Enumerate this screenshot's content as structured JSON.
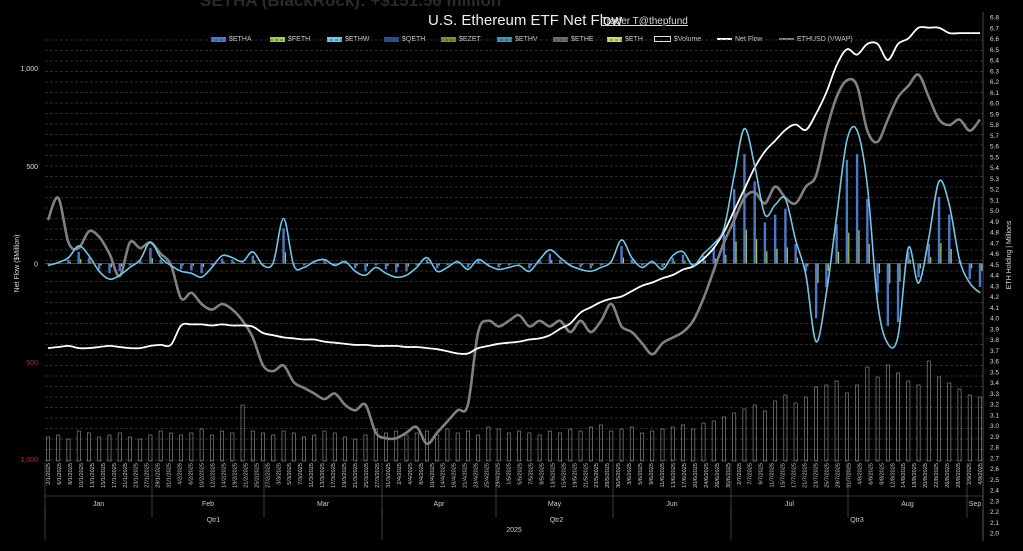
{
  "header": {
    "title": "U.S. Ethereum ETF Net Flow",
    "credit": "Trader T@thepfund",
    "background_text": "SETHA (BlackRock): +$151.56 million"
  },
  "colors": {
    "ETHA": "#4e79c9",
    "FETH": "#a7c957",
    "ETHW": "#76c5e6",
    "QETH": "#2b4f8c",
    "EZET": "#8a8a3a",
    "ETHV": "#4a8fb0",
    "ETHE": "#6b6b6b",
    "ETH": "#c8d97a",
    "Volume": "#9a9a9a",
    "NetFlow": "#ffffff",
    "VWAP": "#808080",
    "zeroDown": "#cc2222"
  },
  "chart_data": {
    "type": "bar",
    "xlabel": "",
    "ylabel": "Net Flow ($Million)",
    "y2label": "ETH Holding | Millions",
    "ylim": [
      -1000,
      1000
    ],
    "y_ticks": [
      "1,000",
      "500",
      "0",
      "500",
      "1,000"
    ],
    "y2lim": [
      2.0,
      6.8
    ],
    "y2_ticks": [
      "6.8",
      "6.7",
      "6.6",
      "6.5",
      "6.4",
      "6.3",
      "6.2",
      "6.1",
      "6.0",
      "5.9",
      "5.8",
      "5.7",
      "5.6",
      "5.5",
      "5.4",
      "5.3",
      "5.2",
      "5.1",
      "5.0",
      "4.9",
      "4.8",
      "4.7",
      "4.6",
      "4.5",
      "4.4",
      "4.3",
      "4.2",
      "4.1",
      "4.0",
      "3.9",
      "3.8",
      "3.7",
      "3.6",
      "3.5",
      "3.4",
      "3.3",
      "3.2",
      "3.1",
      "3.0",
      "2.9",
      "2.8",
      "2.7",
      "2.6",
      "2.5",
      "2.4",
      "2.3",
      "2.2",
      "2.1",
      "2.0"
    ],
    "legend": [
      "$ETHA",
      "$FETH",
      "$ETHW",
      "$QETH",
      "$EZET",
      "$ETHV",
      "$ETHE",
      "$ETH",
      "$Volume",
      "Net Flow",
      "ETHUSD (VWAP)"
    ],
    "legend_position": "top",
    "x_tick_labels": [
      "2/1/2025",
      "6/1/2025",
      "8/1/2025",
      "10/1/2025",
      "13/1/2025",
      "15/1/2025",
      "17/1/2025",
      "21/1/2025",
      "23/1/2025",
      "27/1/2025",
      "29/1/2025",
      "31/1/2025",
      "4/2/2025",
      "6/2/2025",
      "10/2/2025",
      "12/2/2025",
      "14/2/2025",
      "19/2/2025",
      "21/2/2025",
      "25/2/2025",
      "27/2/2025",
      "3/3/2025",
      "5/3/2025",
      "7/3/2025",
      "11/3/2025",
      "13/3/2025",
      "17/3/2025",
      "19/3/2025",
      "21/3/2025",
      "25/3/2025",
      "27/3/2025",
      "31/3/2025",
      "2/4/2025",
      "4/4/2025",
      "8/4/2025",
      "10/4/2025",
      "14/4/2025",
      "16/4/2025",
      "21/4/2025",
      "23/4/2025",
      "25/4/2025",
      "29/4/2025",
      "1/5/2025",
      "5/5/2025",
      "7/5/2025",
      "9/5/2025",
      "13/5/2025",
      "15/5/2025",
      "19/5/2025",
      "21/5/2025",
      "23/5/2025",
      "28/5/2025",
      "30/5/2025",
      "3/6/2025",
      "5/6/2025",
      "9/6/2025",
      "11/6/2025",
      "13/6/2025",
      "17/6/2025",
      "20/6/2025",
      "24/6/2025",
      "26/6/2025",
      "30/6/2025",
      "2/7/2025",
      "7/7/2025",
      "9/7/2025",
      "11/7/2025",
      "15/7/2025",
      "17/7/2025",
      "21/7/2025",
      "23/7/2025",
      "25/7/2025",
      "29/7/2025",
      "31/7/2025",
      "4/8/2025",
      "6/8/2025",
      "8/8/2025",
      "12/8/2025",
      "14/8/2025",
      "18/8/2025",
      "20/8/2025",
      "22/8/2025",
      "26/8/2025",
      "28/8/2025",
      "2/9/2025",
      "4/9/2025"
    ],
    "months": [
      "Jan",
      "Feb",
      "Mar",
      "Apr",
      "May",
      "Jun",
      "Jul",
      "Aug",
      "Sep"
    ],
    "quarters": [
      "Qtr1",
      "Qtr2",
      "Qtr3"
    ],
    "year": "2025",
    "net_flow": [
      -10,
      5,
      30,
      90,
      40,
      -40,
      -80,
      -60,
      -20,
      20,
      110,
      30,
      -10,
      -40,
      -50,
      -70,
      -20,
      40,
      30,
      10,
      60,
      -10,
      5,
      230,
      -10,
      -20,
      10,
      20,
      -10,
      10,
      -40,
      -60,
      -20,
      -50,
      -70,
      -60,
      -20,
      30,
      -40,
      -20,
      10,
      -30,
      20,
      -10,
      -30,
      -20,
      -10,
      -40,
      20,
      70,
      30,
      -10,
      -30,
      -40,
      -20,
      10,
      120,
      30,
      -20,
      10,
      -30,
      40,
      60,
      -10,
      50,
      100,
      180,
      450,
      690,
      500,
      250,
      300,
      330,
      120,
      -60,
      -400,
      -150,
      240,
      630,
      680,
      400,
      -200,
      -410,
      -370,
      80,
      -100,
      130,
      420,
      300,
      20,
      -100,
      -150
    ],
    "etha_bars": [
      -5,
      3,
      20,
      60,
      30,
      -30,
      -50,
      -40,
      -10,
      15,
      80,
      20,
      -5,
      -30,
      -35,
      -50,
      -10,
      25,
      20,
      5,
      40,
      -5,
      0,
      180,
      -5,
      -10,
      5,
      15,
      -5,
      5,
      -25,
      -40,
      -10,
      -30,
      -45,
      -40,
      -10,
      20,
      -25,
      -10,
      5,
      -20,
      15,
      -5,
      -20,
      -10,
      -5,
      -25,
      15,
      50,
      20,
      -5,
      -20,
      -25,
      -10,
      5,
      90,
      20,
      -10,
      5,
      -20,
      30,
      45,
      -5,
      40,
      80,
      150,
      380,
      560,
      420,
      210,
      250,
      280,
      100,
      -40,
      -280,
      -120,
      200,
      530,
      560,
      330,
      -150,
      -320,
      -300,
      60,
      -70,
      100,
      340,
      250,
      15,
      -80,
      -120
    ],
    "eth_holdings_m": [
      3.72,
      3.73,
      3.74,
      3.72,
      3.72,
      3.73,
      3.74,
      3.73,
      3.72,
      3.72,
      3.74,
      3.75,
      3.75,
      3.93,
      3.94,
      3.94,
      3.93,
      3.94,
      3.93,
      3.93,
      3.92,
      3.86,
      3.84,
      3.82,
      3.81,
      3.8,
      3.8,
      3.78,
      3.77,
      3.76,
      3.75,
      3.75,
      3.74,
      3.74,
      3.74,
      3.73,
      3.73,
      3.72,
      3.71,
      3.69,
      3.67,
      3.67,
      3.72,
      3.74,
      3.76,
      3.77,
      3.78,
      3.8,
      3.81,
      3.84,
      3.9,
      3.95,
      4.05,
      4.1,
      4.15,
      4.18,
      4.2,
      4.25,
      4.3,
      4.33,
      4.37,
      4.4,
      4.45,
      4.48,
      4.55,
      4.65,
      4.8,
      5.0,
      5.2,
      5.4,
      5.55,
      5.65,
      5.75,
      5.8,
      5.75,
      5.9,
      6.1,
      6.35,
      6.5,
      6.45,
      6.55,
      6.55,
      6.4,
      6.55,
      6.6,
      6.7,
      6.7,
      6.7,
      6.65,
      6.65,
      6.65,
      6.65
    ],
    "ethusd_vwap": [
      3500,
      3700,
      3300,
      3250,
      3400,
      3350,
      3200,
      3000,
      3300,
      3250,
      3300,
      3200,
      3100,
      2800,
      2850,
      2750,
      2700,
      2750,
      2700,
      2600,
      2450,
      2200,
      2150,
      2200,
      2050,
      2000,
      1950,
      1900,
      1950,
      1850,
      1800,
      1850,
      1600,
      1550,
      1550,
      1600,
      1650,
      1500,
      1600,
      1700,
      1800,
      1850,
      2500,
      2600,
      2550,
      2600,
      2650,
      2550,
      2600,
      2550,
      2600,
      2500,
      2600,
      2500,
      2600,
      2750,
      2550,
      2500,
      2400,
      2300,
      2400,
      2450,
      2500,
      2600,
      2800,
      3050,
      3300,
      3500,
      3700,
      3750,
      3650,
      3800,
      3700,
      3650,
      3800,
      3900,
      4300,
      4600,
      4750,
      4700,
      4300,
      4200,
      4400,
      4600,
      4700,
      4800,
      4600,
      4400,
      4350,
      4400,
      4300,
      4400
    ],
    "volume_bars": [
      120,
      130,
      110,
      150,
      140,
      120,
      130,
      140,
      120,
      110,
      130,
      150,
      140,
      130,
      140,
      160,
      130,
      150,
      140,
      280,
      150,
      140,
      130,
      150,
      140,
      120,
      130,
      150,
      140,
      120,
      110,
      130,
      160,
      140,
      150,
      130,
      140,
      150,
      130,
      160,
      140,
      150,
      130,
      170,
      160,
      140,
      150,
      140,
      130,
      150,
      140,
      160,
      150,
      170,
      180,
      150,
      160,
      170,
      140,
      150,
      160,
      170,
      180,
      160,
      190,
      200,
      220,
      240,
      260,
      280,
      250,
      300,
      330,
      290,
      320,
      370,
      380,
      400,
      340,
      380,
      470,
      420,
      480,
      440,
      400,
      380,
      500,
      420,
      390,
      360,
      330,
      320
    ]
  }
}
